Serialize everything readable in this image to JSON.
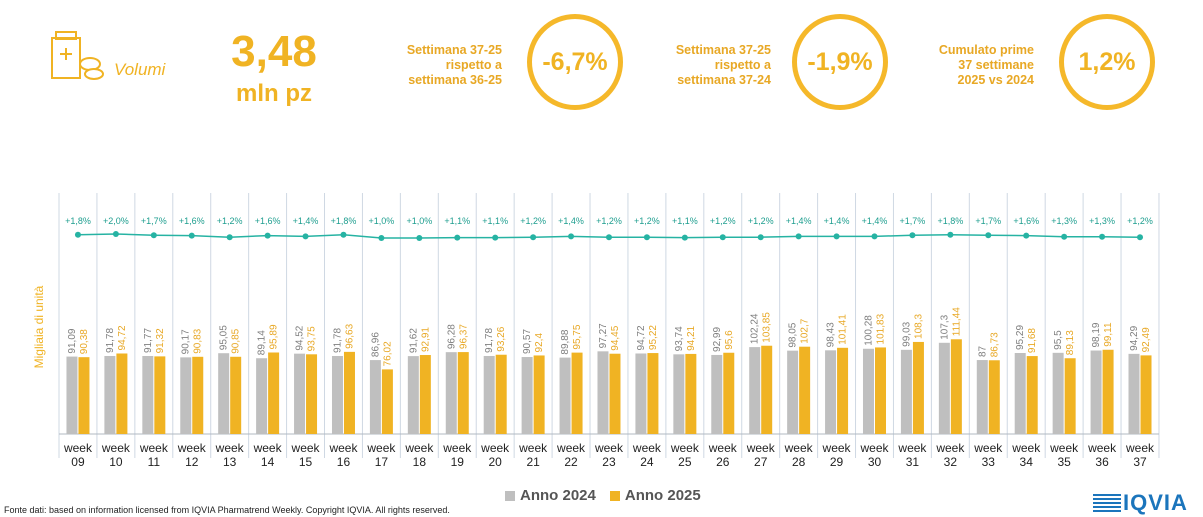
{
  "kpi": {
    "label": "Volumi",
    "value": "3,48",
    "unit": "mln pz",
    "icon": "medicine-boxes-icon"
  },
  "comparisons": [
    {
      "text": "Settimana 37-25\nrispetto a\nsettimana 36-25",
      "value": "-6,7%"
    },
    {
      "text": "Settimana 37-25\nrispetto a\nsettimana 37-24",
      "value": "-1,9%"
    },
    {
      "text": "Cumulato prime\n37 settimane\n2025 vs 2024",
      "value": "1,2%"
    }
  ],
  "colors": {
    "accent": "#f0b323",
    "bar2024": "#bfbfbf",
    "bar2025": "#f0b323",
    "trend": "#26b3a3"
  },
  "chart_data": {
    "type": "bar",
    "ylabel": "Migliaia di unità",
    "categories": [
      "week 09",
      "week 10",
      "week 11",
      "week 12",
      "week 13",
      "week 14",
      "week 15",
      "week 16",
      "week 17",
      "week 18",
      "week 19",
      "week 20",
      "week 21",
      "week 22",
      "week 23",
      "week 24",
      "week 25",
      "week 26",
      "week 27",
      "week 28",
      "week 29",
      "week 30",
      "week 31",
      "week 32",
      "week 33",
      "week 34",
      "week 35",
      "week 36",
      "week 37"
    ],
    "series": [
      {
        "name": "Anno 2024",
        "values": [
          91.09,
          91.78,
          91.77,
          90.17,
          95.05,
          89.14,
          94.52,
          91.78,
          86.96,
          91.62,
          96.28,
          91.78,
          90.57,
          89.88,
          97.27,
          94.72,
          93.74,
          92.99,
          102.24,
          98.05,
          98.43,
          100.28,
          99.03,
          107.3,
          87,
          95.29,
          95.5,
          98.19,
          94.29
        ],
        "labels": [
          "91,09",
          "91,78",
          "91,77",
          "90,17",
          "95,05",
          "89,14",
          "94,52",
          "91,78",
          "86,96",
          "91,62",
          "96,28",
          "91,78",
          "90,57",
          "89,88",
          "97,27",
          "94,72",
          "93,74",
          "92,99",
          "102,24",
          "98,05",
          "98,43",
          "100,28",
          "99,03",
          "107,3",
          "87",
          "95,29",
          "95,5",
          "98,19",
          "94,29"
        ]
      },
      {
        "name": "Anno 2025",
        "values": [
          90.38,
          94.72,
          91.32,
          90.83,
          90.85,
          95.89,
          93.75,
          96.63,
          76.02,
          92.91,
          96.37,
          93.26,
          92.4,
          95.75,
          94.45,
          95.22,
          94.21,
          95.6,
          103.85,
          102.7,
          101.41,
          101.83,
          108.3,
          111.44,
          86.73,
          91.68,
          89.13,
          99.11,
          92.49
        ],
        "labels": [
          "90,38",
          "94,72",
          "91,32",
          "90,83",
          "90,85",
          "95,89",
          "93,75",
          "96,63",
          "76,02",
          "92,91",
          "96,37",
          "93,26",
          "92,4",
          "95,75",
          "94,45",
          "95,22",
          "94,21",
          "95,6",
          "103,85",
          "102,7",
          "101,41",
          "101,83",
          "108,3",
          "111,44",
          "86,73",
          "91,68",
          "89,13",
          "99,11",
          "92,49"
        ]
      }
    ],
    "trend": {
      "values": [
        1.8,
        2.0,
        1.7,
        1.6,
        1.2,
        1.6,
        1.4,
        1.8,
        1.0,
        1.0,
        1.1,
        1.1,
        1.2,
        1.4,
        1.2,
        1.2,
        1.1,
        1.2,
        1.2,
        1.4,
        1.4,
        1.4,
        1.7,
        1.8,
        1.7,
        1.6,
        1.3,
        1.3,
        1.2
      ],
      "labels": [
        "+1,8%",
        "+2,0%",
        "+1,7%",
        "+1,6%",
        "+1,2%",
        "+1,6%",
        "+1,4%",
        "+1,8%",
        "+1,0%",
        "+1,0%",
        "+1,1%",
        "+1,1%",
        "+1,2%",
        "+1,4%",
        "+1,2%",
        "+1,2%",
        "+1,1%",
        "+1,2%",
        "+1,2%",
        "+1,4%",
        "+1,4%",
        "+1,4%",
        "+1,7%",
        "+1,8%",
        "+1,7%",
        "+1,6%",
        "+1,3%",
        "+1,3%",
        "+1,2%"
      ]
    }
  },
  "legend": [
    "Anno 2024",
    "Anno 2025"
  ],
  "footer": "Fonte dati: based on information licensed from IQVIA Pharmatrend Weekly. Copyright IQVIA. All rights reserved.",
  "logo": "IQVIA"
}
